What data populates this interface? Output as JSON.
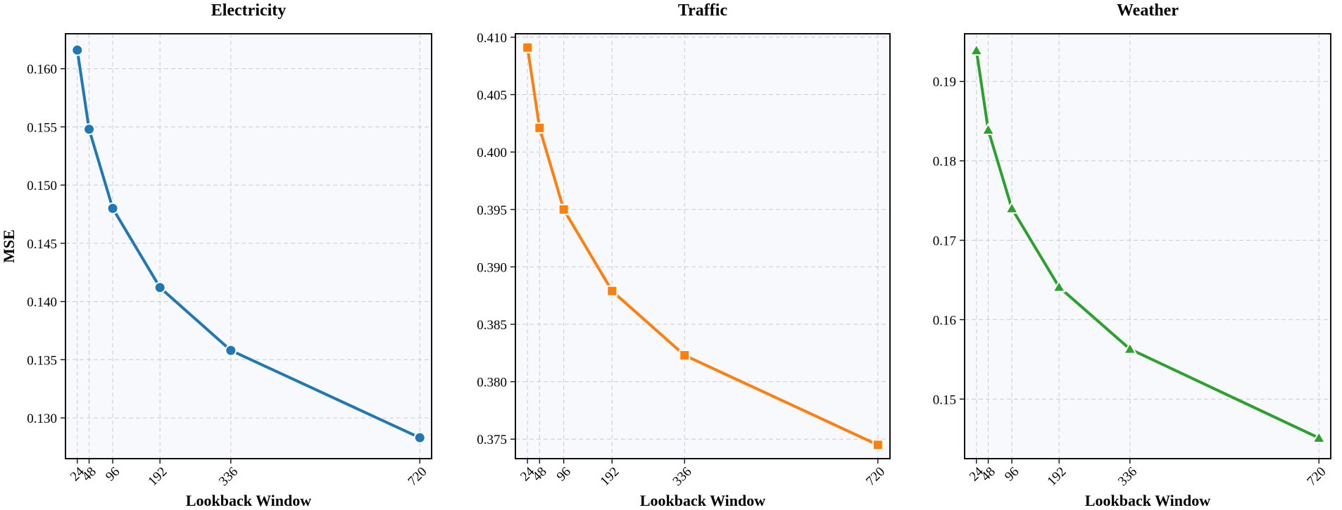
{
  "chart_data": [
    {
      "type": "line",
      "title": "Electricity",
      "xlabel": "Lookback Window",
      "ylabel": "MSE",
      "x": [
        24,
        48,
        96,
        192,
        336,
        720
      ],
      "x_tick_labels": [
        "24",
        "48",
        "96",
        "192",
        "336",
        "720"
      ],
      "xlim": [
        0,
        744
      ],
      "ylim": [
        0.1265,
        0.163
      ],
      "y_ticks": [
        0.13,
        0.135,
        0.14,
        0.145,
        0.15,
        0.155,
        0.16
      ],
      "y_tick_labels": [
        "0.130",
        "0.135",
        "0.140",
        "0.145",
        "0.150",
        "0.155",
        "0.160"
      ],
      "grid": true,
      "series": [
        {
          "values": [
            0.1616,
            0.1548,
            0.148,
            0.1412,
            0.1358,
            0.1283
          ],
          "color": "#1f77b4",
          "marker": "circle"
        }
      ]
    },
    {
      "type": "line",
      "title": "Traffic",
      "xlabel": "Lookback Window",
      "ylabel": "",
      "x": [
        24,
        48,
        96,
        192,
        336,
        720
      ],
      "x_tick_labels": [
        "24",
        "48",
        "96",
        "192",
        "336",
        "720"
      ],
      "xlim": [
        0,
        744
      ],
      "ylim": [
        0.3733,
        0.4103
      ],
      "y_ticks": [
        0.375,
        0.38,
        0.385,
        0.39,
        0.395,
        0.4,
        0.405,
        0.41
      ],
      "y_tick_labels": [
        "0.375",
        "0.380",
        "0.385",
        "0.390",
        "0.395",
        "0.400",
        "0.405",
        "0.410"
      ],
      "grid": true,
      "series": [
        {
          "values": [
            0.4091,
            0.4021,
            0.395,
            0.3879,
            0.3823,
            0.3745
          ],
          "color": "#ff7f0e",
          "marker": "square"
        }
      ]
    },
    {
      "type": "line",
      "title": "Weather",
      "xlabel": "Lookback Window",
      "ylabel": "",
      "x": [
        24,
        48,
        96,
        192,
        336,
        720
      ],
      "x_tick_labels": [
        "24",
        "48",
        "96",
        "192",
        "336",
        "720"
      ],
      "xlim": [
        0,
        744
      ],
      "ylim": [
        0.1425,
        0.196
      ],
      "y_ticks": [
        0.15,
        0.16,
        0.17,
        0.18,
        0.19
      ],
      "y_tick_labels": [
        "0.15",
        "0.16",
        "0.17",
        "0.18",
        "0.19"
      ],
      "grid": true,
      "series": [
        {
          "values": [
            0.1939,
            0.1839,
            0.174,
            0.1641,
            0.1563,
            0.1451
          ],
          "color": "#2ca02c",
          "marker": "triangle"
        }
      ]
    }
  ]
}
